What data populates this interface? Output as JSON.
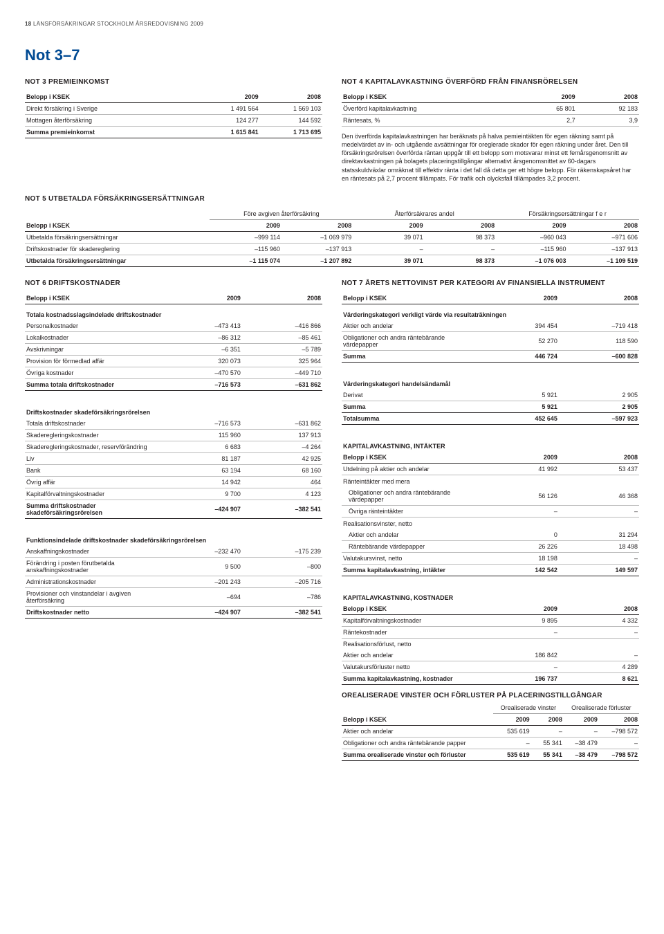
{
  "header": {
    "page_no": "18",
    "doc": "LÄNSFÖRSÄKRINGAR STOCKHOLM ÅRSREDOVISNING 2009"
  },
  "section": "Not 3–7",
  "not3": {
    "title": "NOT 3  PREMIEINKOMST",
    "cols": [
      "Belopp i KSEK",
      "2009",
      "2008"
    ],
    "rows": [
      [
        "Direkt försäkring i Sverige",
        "1 491 564",
        "1 569 103"
      ],
      [
        "Mottagen återförsäkring",
        "124 277",
        "144 592"
      ]
    ],
    "sum": [
      "Summa premieinkomst",
      "1 615 841",
      "1 713 695"
    ]
  },
  "not4": {
    "title": "NOT 4  KAPITALAVKASTNING ÖVERFÖRD FRÅN FINANSRÖRELSEN",
    "cols": [
      "Belopp i KSEK",
      "2009",
      "2008"
    ],
    "rows": [
      [
        "Överförd kapitalavkastning",
        "65 801",
        "92 183"
      ],
      [
        "Räntesats, %",
        "2,7",
        "3,9"
      ]
    ],
    "para": "Den överförda kapitalavkastningen har beräknats på halva pemieintäkten för egen räkning samt på medelvärdet av in- och utgående avsättningar för oreglerade skador för egen räkning under året. Den till försäkringsrörelsen överförda räntan uppgår till ett belopp som motsvarar minst ett femårsgenomsnitt av direktavkastningen på bolagets placeringstillgångar alternativt årsgenomsnittet av 60-dagars statsskuldväxlar omräknat till effektiv ränta i det fall då detta ger ett högre belopp. För räkenskapsåret har en räntesats på 2,7 procent tillämpats. För trafik och olycksfall tillämpades 3,2 procent."
  },
  "not5": {
    "title": "NOT 5  UTBETALDA FÖRSÄKRINGSERSÄTTNINGAR",
    "groups": [
      "",
      "Före avgiven återförsäkring",
      "Återförsäkrares andel",
      "Försäkringsersättningar f e r"
    ],
    "cols": [
      "Belopp i KSEK",
      "2009",
      "2008",
      "2009",
      "2008",
      "2009",
      "2008"
    ],
    "rows": [
      [
        "Utbetalda försäkringsersättningar",
        "–999 114",
        "–1 069 979",
        "39 071",
        "98 373",
        "–960 043",
        "–971 606"
      ],
      [
        "Driftskostnader för skadereglering",
        "–115 960",
        "–137 913",
        "–",
        "–",
        "–115 960",
        "–137 913"
      ]
    ],
    "sum": [
      "Utbetalda försäkringsersättningar",
      "–1 115 074",
      "–1 207 892",
      "39 071",
      "98 373",
      "–1 076 003",
      "–1 109 519"
    ]
  },
  "not6": {
    "title": "NOT 6 DRIFTSKOSTNADER",
    "cols": [
      "Belopp i KSEK",
      "2009",
      "2008"
    ],
    "sub1": "Totala kostnadsslagsindelade driftskostnader",
    "rows1": [
      [
        "Personalkostnader",
        "–473 413",
        "–416 866"
      ],
      [
        "Lokalkostnader",
        "–86 312",
        "–85 461"
      ],
      [
        "Avskrivningar",
        "–6 351",
        "–5 789"
      ],
      [
        "Provision för förmedlad affär",
        "320 073",
        "325 964"
      ],
      [
        "Övriga kostnader",
        "–470 570",
        "–449 710"
      ]
    ],
    "sum1": [
      "Summa totala driftskostnader",
      "–716 573",
      "–631 862"
    ],
    "sub2": "Driftskostnader skadeförsäkringsrörelsen",
    "rows2": [
      [
        "Totala driftskostnader",
        "–716 573",
        "–631 862"
      ],
      [
        "Skaderegleringskostnader",
        "115 960",
        "137 913"
      ],
      [
        "Skaderegleringskostnader, reservförändring",
        "6 683",
        "–4 264"
      ],
      [
        "Liv",
        "81 187",
        "42 925"
      ],
      [
        "Bank",
        "63 194",
        "68 160"
      ],
      [
        "Övrig affär",
        "14 942",
        "464"
      ],
      [
        "Kapitalförvaltningskostnader",
        "9 700",
        "4 123"
      ]
    ],
    "sum2": [
      "Summa driftskostnader skadeförsäkringsrörelsen",
      "–424 907",
      "–382 541"
    ],
    "sub3": "Funktionsindelade driftskostnader skadeförsäkringsrörelsen",
    "rows3": [
      [
        "Anskaffningskostnader",
        "–232 470",
        "–175 239"
      ],
      [
        "Förändring i posten förutbetalda anskaffningskostnader",
        "9 500",
        "–800"
      ],
      [
        "Administrationskostnader",
        "–201 243",
        "–205 716"
      ],
      [
        "Provisioner och vinstandelar i avgiven återförsäkring",
        "–694",
        "–786"
      ]
    ],
    "sum3": [
      "Driftskostnader netto",
      "–424 907",
      "–382 541"
    ]
  },
  "not7": {
    "title": "NOT 7  ÅRETS NETTOVINST PER KATEGORI AV FINANSIELLA INSTRUMENT",
    "cols": [
      "Belopp i KSEK",
      "2009",
      "2008"
    ],
    "sub1": "Värderingskategori verkligt värde via resultaträkningen",
    "rows1": [
      [
        "Aktier och andelar",
        "394 454",
        "–719 418"
      ],
      [
        "Obligationer och andra räntebärande värdepapper",
        "52 270",
        "118 590"
      ]
    ],
    "sum1": [
      "Summa",
      "446 724",
      "–600 828"
    ],
    "sub2": "Värderingskategori handelsändamål",
    "rows2": [
      [
        "Derivat",
        "5 921",
        "2 905"
      ]
    ],
    "sum2": [
      "Summa",
      "5 921",
      "2 905"
    ],
    "total": [
      "Totalsumma",
      "452 645",
      "–597 923"
    ],
    "kav_int_title": "KAPITALAVKASTNING, INTÄKTER",
    "kav_int_rows": [
      [
        "Utdelning på aktier och andelar",
        "41 992",
        "53 437"
      ],
      [
        "Ränteintäkter med mera",
        "",
        ""
      ],
      [
        "  Obligationer och andra räntebärande värdepapper",
        "56 126",
        "46 368"
      ],
      [
        "  Övriga ränteintäkter",
        "–",
        "–"
      ],
      [
        "Realisationsvinster, netto",
        "",
        ""
      ],
      [
        "  Aktier och andelar",
        "0",
        "31 294"
      ],
      [
        "  Räntebärande värdepapper",
        "26 226",
        "18 498"
      ],
      [
        "Valutakursvinst, netto",
        "18 198",
        "–"
      ]
    ],
    "kav_int_sum": [
      "Summa kapitalavkastning, intäkter",
      "142 542",
      "149 597"
    ],
    "kav_kost_title": "KAPITALAVKASTNING, KOSTNADER",
    "kav_kost_rows": [
      [
        "Kapitalförvaltningskostnader",
        "9 895",
        "4 332"
      ],
      [
        "Räntekostnader",
        "–",
        "–"
      ],
      [
        "Realisationsförlust, netto",
        "",
        ""
      ],
      [
        "Aktier och andelar",
        "186 842",
        "–"
      ],
      [
        "Valutakursförluster netto",
        "–",
        "4 289"
      ]
    ],
    "kav_kost_sum": [
      "Summa kapitalavkastning, kostnader",
      "196 737",
      "8 621"
    ],
    "oreal_title": "OREALISERADE VINSTER OCH FÖRLUSTER PÅ PLACERINGSTILLGÅNGAR",
    "oreal_groups": [
      "",
      "Orealiserade vinster",
      "Orealiserade förluster"
    ],
    "oreal_cols": [
      "Belopp i KSEK",
      "2009",
      "2008",
      "2009",
      "2008"
    ],
    "oreal_rows": [
      [
        "Aktier och andelar",
        "535 619",
        "–",
        "–",
        "–798 572"
      ],
      [
        "Obligationer och andra räntebärande papper",
        "–",
        "55 341",
        "–38 479",
        "–"
      ]
    ],
    "oreal_sum": [
      "Summa orealiserade vinster och förluster",
      "535 619",
      "55 341",
      "–38 479",
      "–798 572"
    ]
  }
}
